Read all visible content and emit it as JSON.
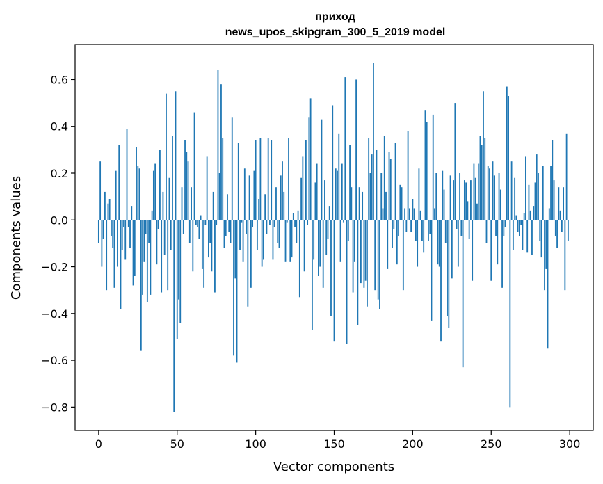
{
  "chart_data": {
    "type": "bar",
    "title": "приход",
    "subtitle": "news_upos_skipgram_300_5_2019 model",
    "xlabel": "Vector components",
    "ylabel": "Components values",
    "xlim": [
      -15,
      315
    ],
    "ylim": [
      -0.9,
      0.75
    ],
    "xticks": [
      0,
      50,
      100,
      150,
      200,
      250,
      300
    ],
    "xtick_labels": [
      "0",
      "50",
      "100",
      "150",
      "200",
      "250",
      "300"
    ],
    "yticks": [
      -0.8,
      -0.6,
      -0.4,
      -0.2,
      0.0,
      0.2,
      0.4,
      0.6
    ],
    "ytick_labels": [
      "−0.8",
      "−0.6",
      "−0.4",
      "−0.2",
      "0.0",
      "0.2",
      "0.4",
      "0.6"
    ],
    "grid": false,
    "color": "#1f77b4",
    "series": [
      {
        "values": [
          -0.1,
          0.25,
          -0.2,
          -0.08,
          0.12,
          -0.3,
          0.07,
          0.09,
          -0.07,
          -0.12,
          -0.29,
          0.21,
          -0.2,
          0.32,
          -0.38,
          -0.13,
          -0.03,
          -0.17,
          0.39,
          -0.03,
          -0.12,
          0.06,
          -0.28,
          -0.24,
          0.31,
          0.23,
          0.22,
          -0.56,
          -0.32,
          -0.18,
          -0.06,
          -0.35,
          -0.1,
          -0.32,
          0.04,
          0.21,
          0.24,
          -0.19,
          -0.04,
          0.3,
          -0.31,
          0.12,
          -0.15,
          0.54,
          -0.3,
          0.18,
          -0.13,
          0.36,
          -0.82,
          0.55,
          -0.51,
          -0.34,
          -0.44,
          0.14,
          -0.06,
          0.34,
          0.29,
          0.25,
          -0.1,
          0.14,
          -0.22,
          0.46,
          -0.02,
          -0.03,
          -0.08,
          0.02,
          -0.21,
          -0.29,
          -0.02,
          0.27,
          -0.16,
          -0.1,
          -0.22,
          0.12,
          -0.31,
          -0.02,
          0.64,
          0.2,
          0.58,
          0.35,
          -0.12,
          -0.07,
          0.11,
          -0.05,
          -0.1,
          0.44,
          -0.58,
          -0.25,
          -0.61,
          0.33,
          -0.13,
          -0.01,
          -0.18,
          0.22,
          -0.06,
          -0.37,
          0.19,
          -0.29,
          -0.03,
          0.21,
          0.34,
          -0.13,
          0.09,
          0.35,
          -0.2,
          -0.17,
          0.11,
          -0.06,
          0.35,
          -0.02,
          0.34,
          -0.17,
          -0.03,
          0.14,
          -0.1,
          -0.12,
          0.19,
          0.25,
          0.12,
          -0.18,
          -0.01,
          0.35,
          -0.18,
          -0.16,
          0.03,
          -0.03,
          -0.1,
          0.04,
          -0.33,
          0.18,
          0.27,
          -0.22,
          0.34,
          -0.02,
          0.44,
          0.52,
          -0.47,
          -0.17,
          0.16,
          0.24,
          -0.24,
          -0.2,
          0.43,
          -0.29,
          0.17,
          -0.15,
          -0.08,
          0.06,
          -0.41,
          0.49,
          -0.52,
          0.22,
          0.21,
          0.37,
          -0.18,
          0.24,
          -0.01,
          0.61,
          -0.53,
          -0.09,
          0.32,
          0.14,
          -0.31,
          -0.18,
          0.6,
          -0.45,
          0.14,
          -0.27,
          0.12,
          -0.29,
          -0.26,
          -0.37,
          0.35,
          0.2,
          0.28,
          0.67,
          -0.3,
          0.3,
          -0.34,
          -0.38,
          0.2,
          0.05,
          0.36,
          0.12,
          -0.21,
          0.29,
          0.26,
          -0.12,
          -0.04,
          0.33,
          -0.19,
          -0.07,
          0.15,
          0.14,
          -0.3,
          0.05,
          -0.05,
          0.38,
          0.05,
          -0.05,
          0.09,
          0.05,
          -0.09,
          -0.2,
          0.22,
          0.04,
          -0.09,
          -0.14,
          0.47,
          0.42,
          -0.09,
          -0.06,
          -0.43,
          0.45,
          0.05,
          0.2,
          -0.19,
          -0.2,
          -0.52,
          0.21,
          0.13,
          -0.1,
          -0.41,
          -0.46,
          0.19,
          -0.25,
          0.17,
          0.5,
          -0.04,
          -0.2,
          0.2,
          -0.07,
          -0.63,
          0.17,
          0.16,
          0.08,
          -0.08,
          0.17,
          -0.26,
          0.24,
          0.18,
          0.07,
          0.24,
          0.36,
          0.32,
          0.55,
          0.35,
          -0.1,
          0.23,
          0.22,
          -0.26,
          0.25,
          0.19,
          -0.07,
          -0.19,
          0.2,
          0.13,
          -0.29,
          -0.07,
          -0.03,
          0.57,
          0.53,
          -0.8,
          0.25,
          -0.13,
          0.18,
          0.02,
          -0.05,
          -0.07,
          -0.02,
          -0.13,
          0.03,
          0.27,
          -0.14,
          0.15,
          0.04,
          -0.15,
          0.06,
          0.16,
          0.28,
          0.2,
          -0.09,
          -0.16,
          0.23,
          -0.3,
          -0.21,
          -0.55,
          0.05,
          0.23,
          0.34,
          0.17,
          -0.07,
          -0.12,
          0.14,
          0.04,
          -0.05,
          0.14,
          -0.3,
          0.37,
          -0.09
        ]
      }
    ]
  }
}
